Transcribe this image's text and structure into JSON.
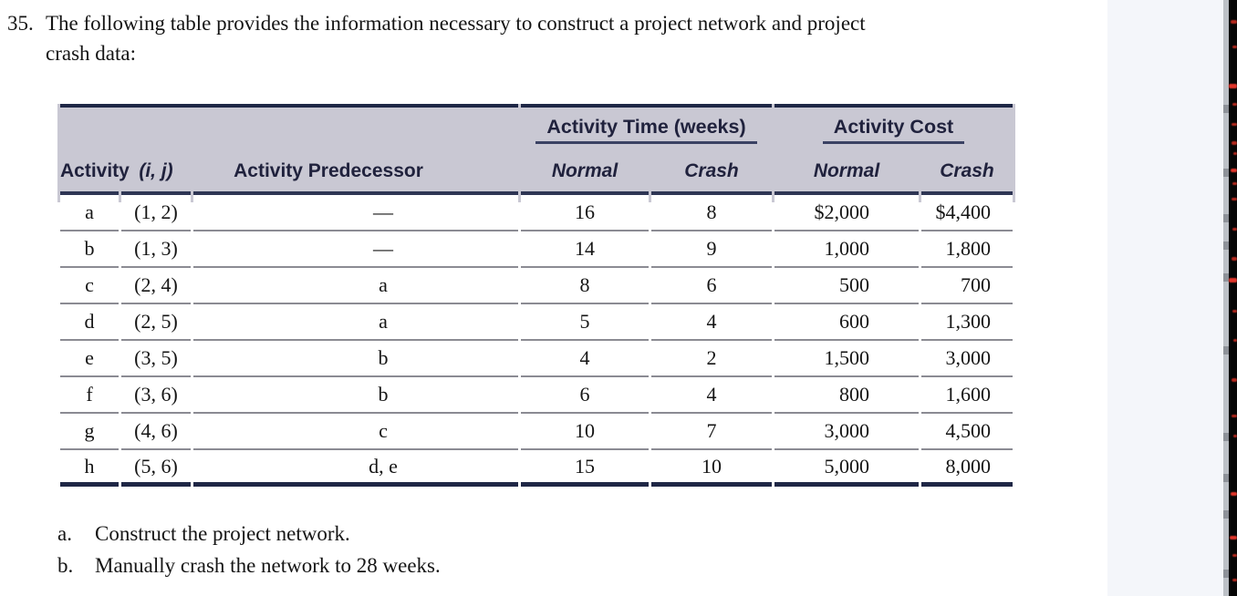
{
  "problem": {
    "number": "35.",
    "line1": "The following table provides the information necessary to construct a project network and project",
    "line2": "crash data:"
  },
  "table": {
    "group_headers": {
      "time": "Activity Time (weeks)",
      "cost": "Activity Cost"
    },
    "col_headers": {
      "activity": "Activity",
      "ij": "(i, j)",
      "predecessor": "Activity Predecessor",
      "time_normal": "Normal",
      "time_crash": "Crash",
      "cost_normal": "Normal",
      "cost_crash": "Crash"
    },
    "rows": [
      {
        "activity": "a",
        "ij": "(1, 2)",
        "predecessor": "—",
        "time_normal": "16",
        "time_crash": "8",
        "cost_normal": "$2,000",
        "cost_crash": "$4,400"
      },
      {
        "activity": "b",
        "ij": "(1, 3)",
        "predecessor": "—",
        "time_normal": "14",
        "time_crash": "9",
        "cost_normal": "1,000",
        "cost_crash": "1,800"
      },
      {
        "activity": "c",
        "ij": "(2, 4)",
        "predecessor": "a",
        "time_normal": "8",
        "time_crash": "6",
        "cost_normal": "500",
        "cost_crash": "700"
      },
      {
        "activity": "d",
        "ij": "(2, 5)",
        "predecessor": "a",
        "time_normal": "5",
        "time_crash": "4",
        "cost_normal": "600",
        "cost_crash": "1,300"
      },
      {
        "activity": "e",
        "ij": "(3, 5)",
        "predecessor": "b",
        "time_normal": "4",
        "time_crash": "2",
        "cost_normal": "1,500",
        "cost_crash": "3,000"
      },
      {
        "activity": "f",
        "ij": "(3, 6)",
        "predecessor": "b",
        "time_normal": "6",
        "time_crash": "4",
        "cost_normal": "800",
        "cost_crash": "1,600"
      },
      {
        "activity": "g",
        "ij": "(4, 6)",
        "predecessor": "c",
        "time_normal": "10",
        "time_crash": "7",
        "cost_normal": "3,000",
        "cost_crash": "4,500"
      },
      {
        "activity": "h",
        "ij": "(5, 6)",
        "predecessor": "d, e",
        "time_normal": "15",
        "time_crash": "10",
        "cost_normal": "5,000",
        "cost_crash": "8,000"
      }
    ]
  },
  "questions": [
    {
      "label": "a.",
      "text": "Construct the project network."
    },
    {
      "label": "b.",
      "text": "Manually crash the network to 28 weeks."
    }
  ],
  "colors": {
    "header_bg": "#c9c8d3",
    "border_navy": "#1f2746",
    "row_rule": "#8b8b93",
    "accent_red": "#b5291e"
  }
}
